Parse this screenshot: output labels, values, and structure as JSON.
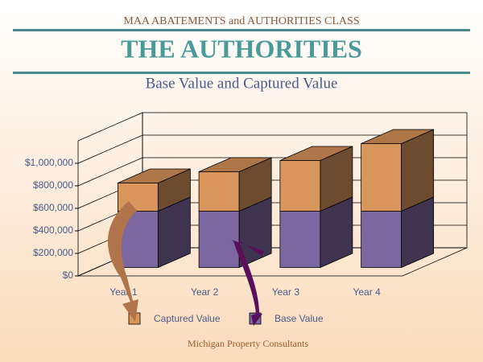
{
  "header": {
    "course": "MAA ABATEMENTS and AUTHORITIES CLASS",
    "title": "THE AUTHORITIES"
  },
  "chart_data": {
    "type": "stacked-bar-3d",
    "title": "Base Value and Captured Value",
    "categories": [
      "Year 1",
      "Year 2",
      "Year 3",
      "Year 4"
    ],
    "series": [
      {
        "name": "Captured Value",
        "color": "#d8955c",
        "values": [
          250000,
          350000,
          450000,
          600000
        ]
      },
      {
        "name": "Base Value",
        "color": "#7c67a0",
        "values": [
          500000,
          500000,
          500000,
          500000
        ]
      }
    ],
    "ylim": [
      0,
      1200000
    ],
    "yticks": [
      {
        "value": 0,
        "label": "$0"
      },
      {
        "value": 200000,
        "label": "$200,000"
      },
      {
        "value": 400000,
        "label": "$400,000"
      },
      {
        "value": 600000,
        "label": "$600,000"
      },
      {
        "value": 800000,
        "label": "$800,000"
      },
      {
        "value": 1000000,
        "label": "$1,000,000"
      }
    ],
    "grid": true
  },
  "footer": "Michigan Property Consultants"
}
